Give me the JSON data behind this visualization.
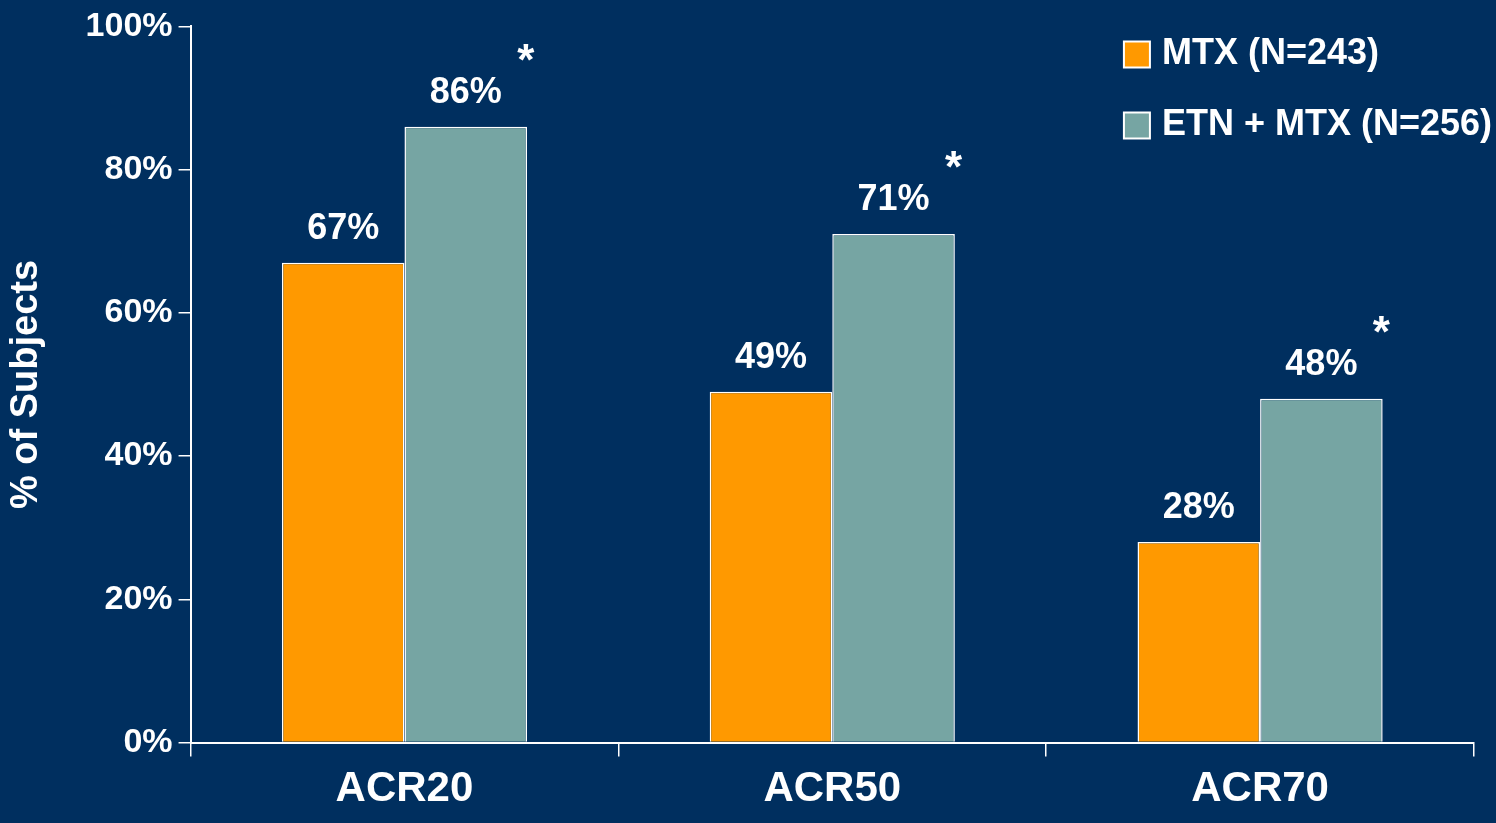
{
  "chart_data": {
    "type": "bar",
    "ylabel": "% of Subjects",
    "categories": [
      "ACR20",
      "ACR50",
      "ACR70"
    ],
    "series": [
      {
        "name": "MTX (N=243)",
        "color": "#ff9900",
        "values": [
          67,
          49,
          28
        ],
        "value_labels": [
          "67%",
          "49%",
          "28%"
        ]
      },
      {
        "name": "ETN + MTX (N=256)",
        "color": "#76a5a3",
        "values": [
          86,
          71,
          48
        ],
        "value_labels": [
          "86%",
          "71%",
          "48%"
        ]
      }
    ],
    "ylim": [
      0,
      100
    ],
    "yticks": [
      {
        "value": 0,
        "label": "0%"
      },
      {
        "value": 20,
        "label": "20%"
      },
      {
        "value": 40,
        "label": "40%"
      },
      {
        "value": 60,
        "label": "60%"
      },
      {
        "value": 80,
        "label": "80%"
      },
      {
        "value": 100,
        "label": "100%"
      }
    ],
    "annotations": [
      {
        "text": "*",
        "x": "ACR20",
        "y": 86
      },
      {
        "text": "*",
        "x": "ACR50",
        "y": 71
      },
      {
        "text": "*",
        "x": "ACR70",
        "y": 48
      }
    ],
    "grid": false,
    "legend": "top right"
  }
}
